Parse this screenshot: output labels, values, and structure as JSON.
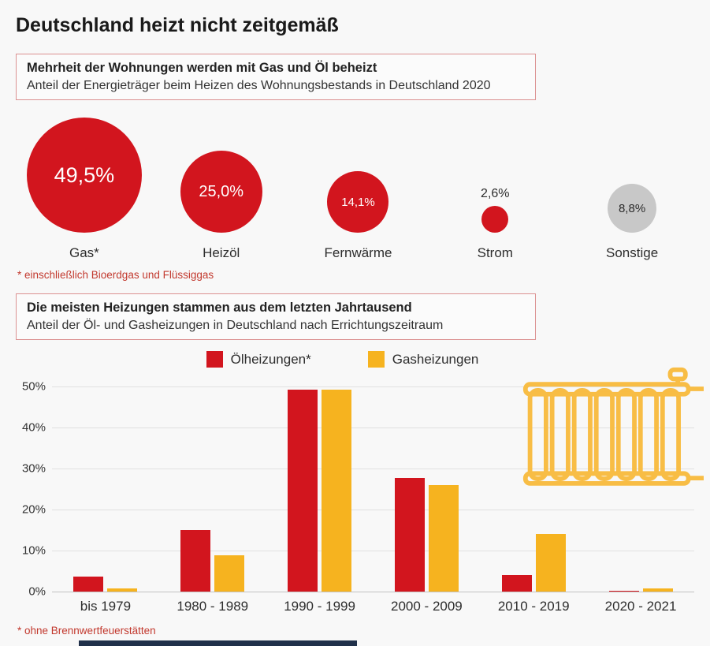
{
  "page": {
    "title": "Deutschland heizt nicht zeitgemäß"
  },
  "colors": {
    "red": "#d2151e",
    "yellow": "#f6b31f",
    "gray": "#c8c8c8",
    "footnote_red": "#c2392e",
    "footer_bar": "#20304a",
    "radiator_outline": "#f8bd45"
  },
  "icons": [
    {
      "name": "radiator-icon",
      "meaning": "decorative radiator illustration"
    }
  ],
  "chart_data": [
    {
      "type": "bubble",
      "title": "Mehrheit der Wohnungen werden mit Gas und Öl beheizt",
      "subtitle": "Anteil der Energieträger beim Heizen des Wohnungsbestands in Deutschland 2020",
      "footnote": "* einschließlich Bioerdgas und Flüssiggas",
      "items": [
        {
          "label": "Gas*",
          "value": 49.5,
          "value_label": "49,5%",
          "color": "#d2151e",
          "text_color": "#ffffff",
          "value_inside": true
        },
        {
          "label": "Heizöl",
          "value": 25.0,
          "value_label": "25,0%",
          "color": "#d2151e",
          "text_color": "#ffffff",
          "value_inside": true
        },
        {
          "label": "Fernwärme",
          "value": 14.1,
          "value_label": "14,1%",
          "color": "#d2151e",
          "text_color": "#ffffff",
          "value_inside": true
        },
        {
          "label": "Strom",
          "value": 2.6,
          "value_label": "2,6%",
          "color": "#d2151e",
          "text_color": "#2d2d2d",
          "value_inside": false
        },
        {
          "label": "Sonstige",
          "value": 8.8,
          "value_label": "8,8%",
          "color": "#c8c8c8",
          "text_color": "#2d2d2d",
          "value_inside": true
        }
      ]
    },
    {
      "type": "bar",
      "title": "Die meisten Heizungen stammen aus dem letzten Jahrtausend",
      "subtitle": "Anteil der Öl- und Gasheizungen in Deutschland nach Errichtungszeitraum",
      "footnote": "* ohne Brennwertfeuerstätten",
      "categories": [
        "bis 1979",
        "1980 - 1989",
        "1990 - 1999",
        "2000 - 2009",
        "2010 - 2019",
        "2020 - 2021"
      ],
      "series": [
        {
          "name": "Ölheizungen*",
          "color": "#d2151e",
          "values": [
            3.6,
            15.0,
            49.3,
            27.7,
            4.0,
            0.2
          ]
        },
        {
          "name": "Gasheizungen",
          "color": "#f6b31f",
          "values": [
            0.7,
            8.8,
            49.2,
            26.0,
            14.0,
            0.8
          ]
        }
      ],
      "xlabel": "",
      "ylabel": "",
      "ylim": [
        0,
        50
      ],
      "yticks": [
        "0%",
        "10%",
        "20%",
        "30%",
        "40%",
        "50%"
      ],
      "grid": true,
      "legend_position": "top"
    }
  ]
}
